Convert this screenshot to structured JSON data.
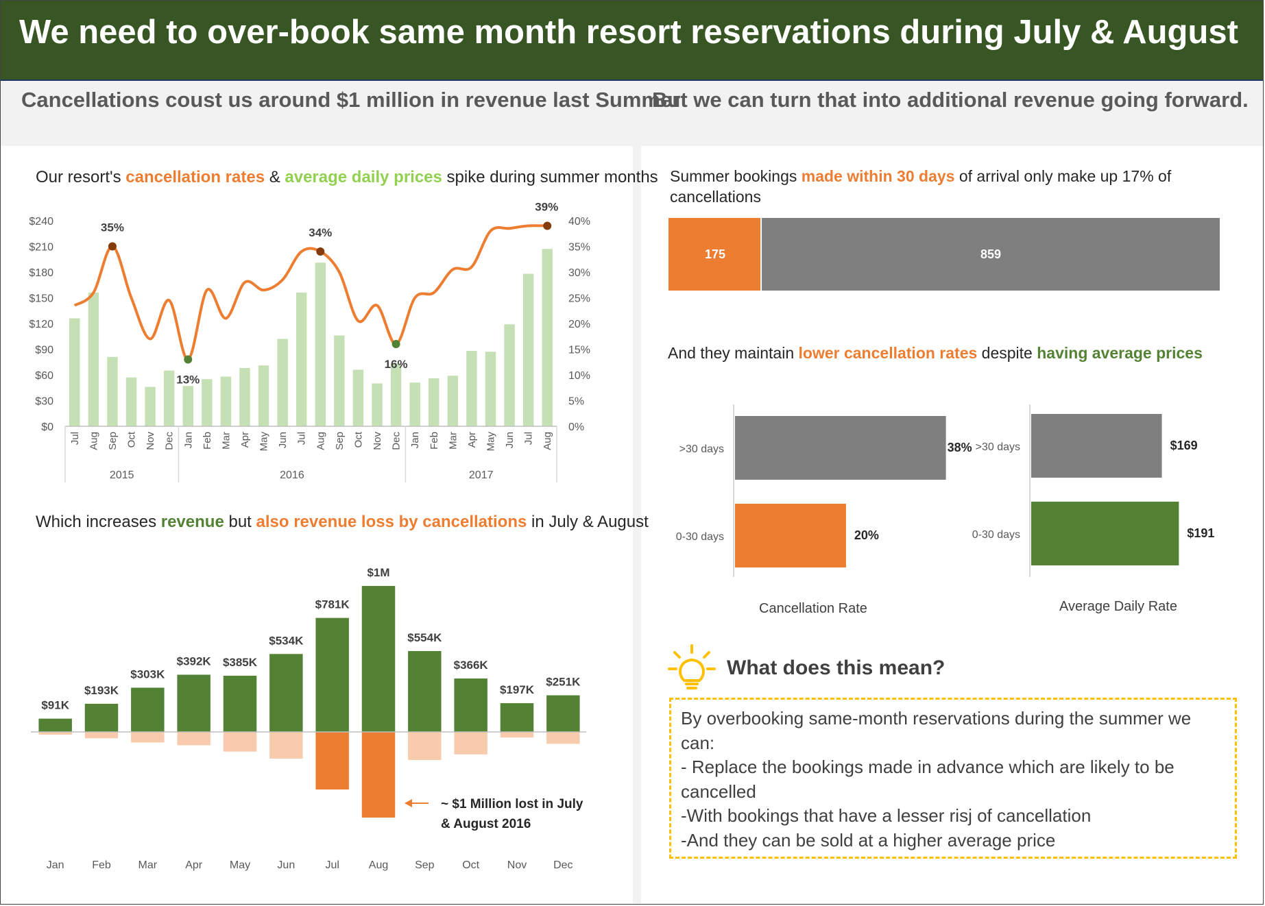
{
  "header": {
    "title": "We need to over-book same month resort reservations during July & August",
    "subtitle_left": "Cancellations coust us around $1 million in revenue last Summer",
    "subtitle_right": "But we can turn that into additional revenue going forward."
  },
  "colors": {
    "header_bg": "#375623",
    "orange": "#ed7d31",
    "light_orange": "#f8cbad",
    "dark_green": "#548235",
    "light_green": "#c5e0b4",
    "gray": "#7f7f7f",
    "bulb": "#ffc000"
  },
  "panel1": {
    "title_a": "Our resort's ",
    "title_b": "cancellation rates",
    "title_c": " & ",
    "title_d": "average daily prices",
    "title_e": " spike during summer months"
  },
  "panel2": {
    "title_a": "Which increases ",
    "title_b": "revenue",
    "title_c": " but ",
    "title_d": "also revenue loss by cancellations",
    "title_e": " in July & August",
    "annotation_line1": "~ $1 Million lost in July",
    "annotation_line2": "& August 2016"
  },
  "panel3": {
    "title_a": "Summer bookings ",
    "title_b": "made within 30 days",
    "title_c": " of arrival only make up 17% of",
    "title_d": "cancellations"
  },
  "panel4": {
    "title_a": "And they maintain ",
    "title_b": "lower cancellation rates",
    "title_c": " despite ",
    "title_d": "having average prices"
  },
  "meaning": {
    "heading": "What does this mean?",
    "line1": "By overbooking same-month reservations during the summer we can:",
    "line2": "- Replace the bookings made in advance which are likely to be cancelled",
    "line3": "-With bookings that have a lesser risj of cancellation",
    "line4": "-And they can be sold at a higher average price"
  },
  "chart_data": [
    {
      "type": "bar+line",
      "categories": [
        "Jul",
        "Aug",
        "Sep",
        "Oct",
        "Nov",
        "Dec",
        "Jan",
        "Feb",
        "Mar",
        "Apr",
        "May",
        "Jun",
        "Jul",
        "Aug",
        "Sep",
        "Oct",
        "Nov",
        "Dec",
        "Jan",
        "Feb",
        "Mar",
        "Apr",
        "May",
        "Jun",
        "Jul",
        "Aug"
      ],
      "year_groups": [
        {
          "label": "2015",
          "count": 6
        },
        {
          "label": "2016",
          "count": 12
        },
        {
          "label": "2017",
          "count": 8
        }
      ],
      "series": [
        {
          "name": "average daily prices",
          "axis": "left",
          "kind": "bar",
          "values": [
            126,
            156,
            81,
            57,
            46,
            65,
            47,
            55,
            58,
            68,
            71,
            102,
            156,
            191,
            106,
            66,
            50,
            73,
            51,
            56,
            59,
            88,
            87,
            119,
            178,
            207
          ]
        },
        {
          "name": "cancellation rates",
          "axis": "right",
          "kind": "line",
          "values": [
            23.5,
            26,
            35,
            25,
            17,
            24.5,
            13,
            26.5,
            21,
            28,
            26.5,
            28.5,
            34,
            34,
            30,
            20.5,
            23.5,
            16,
            25,
            26,
            30.5,
            31,
            38,
            38.5,
            39,
            39
          ]
        }
      ],
      "point_labels": [
        {
          "index": 2,
          "text": "35%"
        },
        {
          "index": 6,
          "text": "13%"
        },
        {
          "index": 13,
          "text": "34%"
        },
        {
          "index": 17,
          "text": "16%"
        },
        {
          "index": 25,
          "text": "39%"
        }
      ],
      "left_ticks": [
        "$0",
        "$30",
        "$60",
        "$90",
        "$120",
        "$150",
        "$180",
        "$210",
        "$240"
      ],
      "left_ylim": [
        0,
        240
      ],
      "right_ticks": [
        "0%",
        "5%",
        "10%",
        "15%",
        "20%",
        "25%",
        "30%",
        "35%",
        "40%"
      ],
      "right_ylim": [
        0,
        40
      ]
    },
    {
      "type": "bar",
      "categories": [
        "Jan",
        "Feb",
        "Mar",
        "Apr",
        "May",
        "Jun",
        "Jul",
        "Aug",
        "Sep",
        "Oct",
        "Nov",
        "Dec"
      ],
      "series": [
        {
          "name": "revenue",
          "values": [
            91,
            193,
            303,
            392,
            385,
            534,
            781,
            1000,
            554,
            366,
            197,
            251
          ],
          "labels": [
            "$91K",
            "$193K",
            "$303K",
            "$392K",
            "$385K",
            "$534K",
            "$781K",
            "$1M",
            "$554K",
            "$366K",
            "$197K",
            "$251K"
          ]
        },
        {
          "name": "revenue loss by cancellations",
          "values": [
            -20,
            -45,
            -75,
            -95,
            -140,
            -190,
            -410,
            -610,
            -200,
            -160,
            -40,
            -85
          ]
        }
      ],
      "highlight_loss": [
        "Jul",
        "Aug"
      ]
    },
    {
      "type": "bar",
      "orientation": "horizontal-stacked",
      "categories": [
        "0-30 days",
        ">30 days"
      ],
      "values": [
        175,
        859
      ]
    },
    {
      "type": "bar",
      "orientation": "horizontal",
      "xlabel": "Cancellation Rate",
      "categories": [
        ">30 days",
        "0-30 days"
      ],
      "values": [
        38,
        20
      ],
      "labels": [
        "38%",
        "20%"
      ]
    },
    {
      "type": "bar",
      "orientation": "horizontal",
      "xlabel": "Average Daily Rate",
      "categories": [
        ">30 days",
        "0-30 days"
      ],
      "values": [
        169,
        191
      ],
      "labels": [
        "$169",
        "$191"
      ]
    }
  ]
}
